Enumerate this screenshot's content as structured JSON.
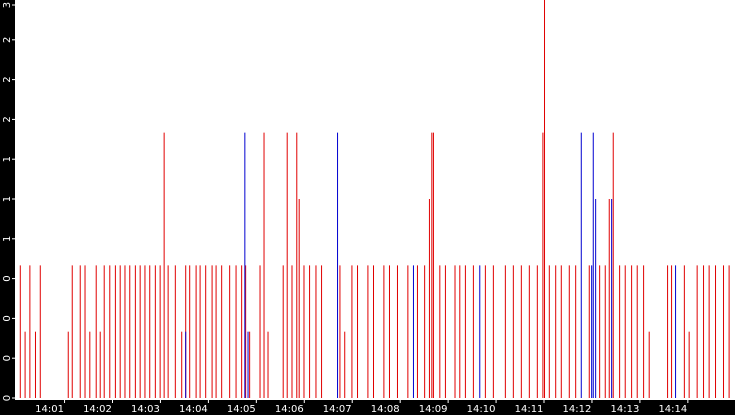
{
  "chart_data": {
    "type": "spike",
    "xlim": [
      -2,
      899
    ],
    "xticks": [
      {
        "value": 60,
        "label": "14:01"
      },
      {
        "value": 120,
        "label": "14:02"
      },
      {
        "value": 180,
        "label": "14:03"
      },
      {
        "value": 240,
        "label": "14:04"
      },
      {
        "value": 300,
        "label": "14:05"
      },
      {
        "value": 360,
        "label": "14:06"
      },
      {
        "value": 420,
        "label": "14:07"
      },
      {
        "value": 480,
        "label": "14:08"
      },
      {
        "value": 540,
        "label": "14:09"
      },
      {
        "value": 600,
        "label": "14:10"
      },
      {
        "value": 660,
        "label": "14:11"
      },
      {
        "value": 720,
        "label": "14:12"
      },
      {
        "value": 780,
        "label": "14:13"
      },
      {
        "value": 840,
        "label": "14:14"
      }
    ],
    "ylim": [
      0,
      3
    ],
    "yticks": [
      {
        "value": 0,
        "label": "0"
      },
      {
        "value": 0.3,
        "label": "0"
      },
      {
        "value": 0.6,
        "label": "0"
      },
      {
        "value": 0.9,
        "label": "0"
      },
      {
        "value": 1.2,
        "label": "1"
      },
      {
        "value": 1.5,
        "label": "1"
      },
      {
        "value": 1.8,
        "label": "1"
      },
      {
        "value": 2.1,
        "label": "2"
      },
      {
        "value": 2.4,
        "label": "2"
      },
      {
        "value": 2.7,
        "label": "2"
      },
      {
        "value": 3,
        "label": "3"
      }
    ],
    "series": [
      {
        "color": "#e00000",
        "x": [
          4,
          10,
          16,
          23,
          29,
          64,
          69,
          79,
          85,
          91,
          99,
          104,
          109,
          116,
          123,
          129,
          135,
          141,
          148,
          154,
          160,
          166,
          173,
          179,
          184,
          189,
          198,
          206,
          211,
          216,
          224,
          229,
          236,
          244,
          249,
          256,
          266,
          274,
          281,
          286,
          291,
          304,
          309,
          314,
          333,
          338,
          344,
          350,
          353,
          359,
          366,
          374,
          381,
          404,
          410,
          419,
          426,
          439,
          446,
          459,
          466,
          476,
          489,
          501,
          510,
          516,
          519,
          521,
          529,
          536,
          548,
          554,
          561,
          571,
          586,
          596,
          611,
          621,
          631,
          641,
          651,
          658,
          660,
          666,
          674,
          681,
          691,
          699,
          716,
          729,
          736,
          741,
          746,
          754,
          761,
          769,
          776,
          784,
          791,
          814,
          819,
          835,
          841,
          851,
          859,
          866,
          874,
          884,
          891
        ],
        "values": [
          1,
          0.5,
          1,
          0.5,
          1,
          0.5,
          1,
          1,
          1,
          0.5,
          1,
          0.5,
          1,
          1,
          1,
          1,
          1,
          1,
          1,
          1,
          1,
          1,
          1,
          1,
          2,
          1,
          1,
          0.5,
          1,
          1,
          1,
          1,
          1,
          1,
          1,
          1,
          1,
          1,
          1,
          1,
          0.5,
          1,
          2,
          0.5,
          1,
          2,
          1,
          2,
          1.5,
          1,
          1,
          1,
          1,
          1,
          0.5,
          1,
          1,
          1,
          1,
          1,
          1,
          1,
          1,
          1,
          1,
          1.5,
          2,
          2,
          1,
          1,
          1,
          1,
          1,
          1,
          1,
          1,
          1,
          1,
          1,
          1,
          1,
          2,
          3,
          1,
          1,
          1,
          1,
          1,
          1,
          1,
          1,
          1.5,
          2,
          1,
          1,
          1,
          1,
          1,
          0.5,
          1,
          1,
          1,
          0.5,
          1,
          1,
          1,
          1,
          1,
          1
        ]
      },
      {
        "color": "#0000d0",
        "x": [
          211,
          285,
          289,
          401,
          496,
          579,
          706,
          719,
          721,
          724,
          744,
          824
        ],
        "values": [
          0.5,
          2,
          0.5,
          2,
          1,
          1,
          2,
          1,
          2,
          1.5,
          1.5,
          1
        ]
      }
    ]
  }
}
